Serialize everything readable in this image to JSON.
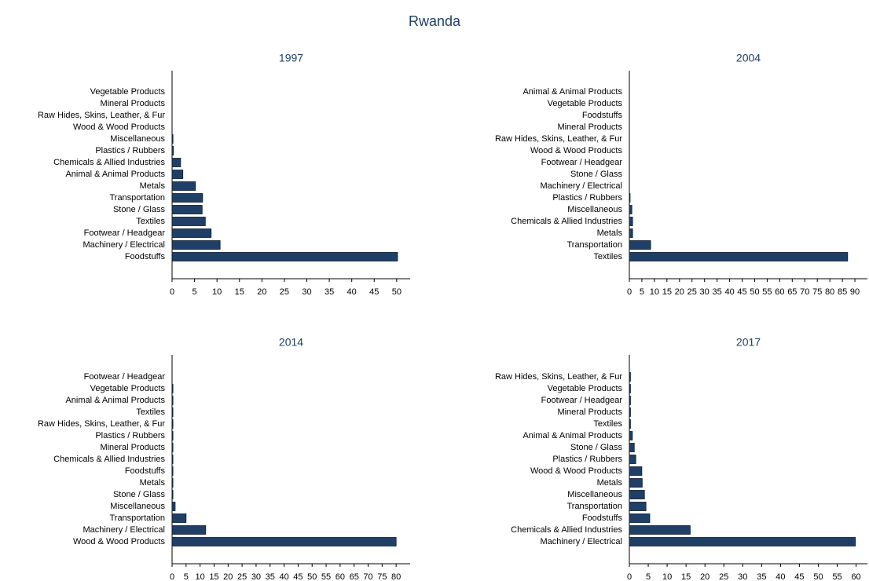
{
  "title": "Rwanda",
  "chart_data": [
    {
      "type": "bar",
      "title": "1997",
      "color": "#1f3f66",
      "categories": [
        "Vegetable Products",
        "Mineral Products",
        "Raw Hides, Skins, Leather, & Fur",
        "Wood & Wood Products",
        "Miscellaneous",
        "Plastics / Rubbers",
        "Chemicals & Allied Industries",
        "Animal & Animal Products",
        "Metals",
        "Transportation",
        "Stone / Glass",
        "Textiles",
        "Footwear / Headgear",
        "Machinery / Electrical",
        "Foodstuffs"
      ],
      "values": [
        0,
        0,
        0,
        0,
        0.2,
        0.3,
        1.9,
        2.4,
        5.2,
        6.8,
        6.7,
        7.4,
        8.7,
        10.7,
        50.2
      ],
      "xlim": [
        0,
        53
      ],
      "xticks": [
        0,
        5,
        10,
        15,
        20,
        25,
        30,
        35,
        40,
        45,
        50
      ]
    },
    {
      "type": "bar",
      "title": "2004",
      "color": "#1f3f66",
      "categories": [
        "Animal & Animal Products",
        "Vegetable Products",
        "Foodstuffs",
        "Mineral Products",
        "Raw Hides, Skins, Leather, & Fur",
        "Wood & Wood Products",
        "Footwear / Headgear",
        "Stone / Glass",
        "Machinery / Electrical",
        "Plastics / Rubbers",
        "Miscellaneous",
        "Chemicals & Allied Industries",
        "Metals",
        "Transportation",
        "Textiles"
      ],
      "values": [
        0,
        0,
        0,
        0,
        0,
        0,
        0,
        0,
        0,
        0.3,
        1,
        1.3,
        1.3,
        8.5,
        87.1
      ],
      "xlim": [
        0,
        95
      ],
      "xticks": [
        0,
        5,
        10,
        15,
        20,
        25,
        30,
        35,
        40,
        45,
        50,
        55,
        60,
        65,
        70,
        75,
        80,
        85,
        90
      ]
    },
    {
      "type": "bar",
      "title": "2014",
      "color": "#1f3f66",
      "categories": [
        "Footwear / Headgear",
        "Vegetable Products",
        "Animal & Animal Products",
        "Textiles",
        "Raw Hides, Skins, Leather, & Fur",
        "Plastics / Rubbers",
        "Mineral Products",
        "Chemicals & Allied Industries",
        "Foodstuffs",
        "Metals",
        "Stone / Glass",
        "Miscellaneous",
        "Transportation",
        "Machinery / Electrical",
        "Wood & Wood Products"
      ],
      "values": [
        0,
        0.3,
        0.3,
        0.3,
        0.3,
        0.3,
        0.3,
        0.3,
        0.3,
        0.3,
        0.3,
        1.1,
        5,
        12,
        80
      ],
      "xlim": [
        0,
        85
      ],
      "xticks": [
        0,
        5,
        10,
        15,
        20,
        25,
        30,
        35,
        40,
        45,
        50,
        55,
        60,
        65,
        70,
        75,
        80
      ]
    },
    {
      "type": "bar",
      "title": "2017",
      "color": "#1f3f66",
      "categories": [
        "Raw Hides, Skins, Leather, & Fur",
        "Vegetable Products",
        "Footwear / Headgear",
        "Mineral Products",
        "Textiles",
        "Animal & Animal Products",
        "Stone / Glass",
        "Plastics / Rubbers",
        "Wood & Wood Products",
        "Metals",
        "Miscellaneous",
        "Transportation",
        "Foodstuffs",
        "Chemicals & Allied Industries",
        "Machinery / Electrical"
      ],
      "values": [
        0.3,
        0.3,
        0.3,
        0.3,
        0.3,
        0.8,
        1.3,
        1.7,
        3.3,
        3.4,
        4,
        4.4,
        5.4,
        16.1,
        59.8
      ],
      "xlim": [
        0,
        63
      ],
      "xticks": [
        0,
        5,
        10,
        15,
        20,
        25,
        30,
        35,
        40,
        45,
        50,
        55,
        60
      ]
    }
  ]
}
